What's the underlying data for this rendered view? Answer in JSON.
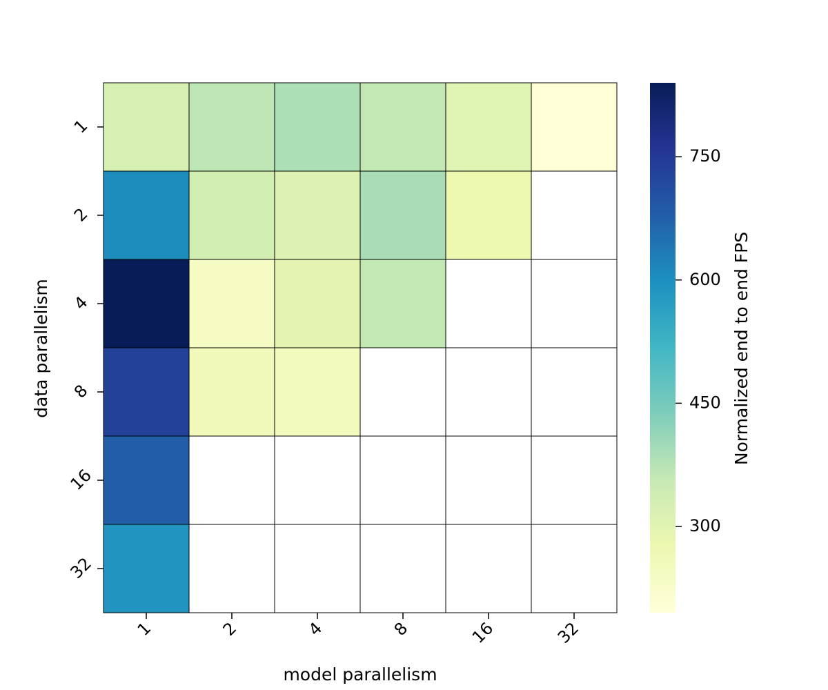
{
  "chart_data": {
    "type": "heatmap",
    "title": "",
    "xlabel": "model parallelism",
    "ylabel": "data parallelism",
    "x_categories": [
      "1",
      "2",
      "4",
      "8",
      "16",
      "32"
    ],
    "y_categories": [
      "1",
      "2",
      "4",
      "8",
      "16",
      "32"
    ],
    "values": [
      [
        325,
        365,
        385,
        360,
        305,
        200
      ],
      [
        605,
        330,
        310,
        390,
        275,
        null
      ],
      [
        840,
        240,
        300,
        360,
        null,
        null
      ],
      [
        735,
        260,
        250,
        null,
        null,
        null
      ],
      [
        680,
        null,
        null,
        null,
        null,
        null
      ],
      [
        590,
        null,
        null,
        null,
        null,
        null
      ]
    ],
    "colorbar": {
      "label": "Normalized end to end FPS",
      "vmin": 195,
      "vmax": 840,
      "ticks": [
        300,
        450,
        600,
        750
      ],
      "colormap": "YlGnBu",
      "stops": [
        "#ffffd9",
        "#edf8b1",
        "#c7e9b4",
        "#7fcdbb",
        "#41b6c4",
        "#1d91c0",
        "#225ea8",
        "#253494",
        "#081d58"
      ]
    },
    "grid": true
  }
}
